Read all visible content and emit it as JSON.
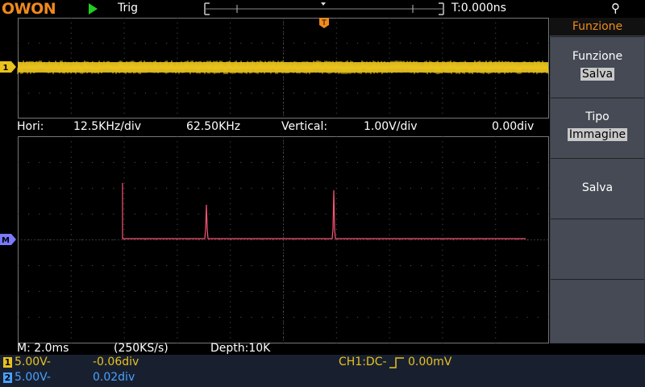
{
  "brand": "OWON",
  "header": {
    "trigger_label": "Trig",
    "time_offset": "T:0.000ns",
    "usb_icon": "usb-icon"
  },
  "fft_info": {
    "hori_label": "Hori:",
    "hori_scale": "12.5KHz/div",
    "hori_center": "62.50KHz",
    "vertical_label": "Vertical:",
    "vertical_scale": "1.00V/div",
    "vertical_offset": "0.00div"
  },
  "channel_markers": {
    "ch1": "1",
    "math": "M",
    "trigger": "T"
  },
  "status": {
    "timebase": "M: 2.0ms",
    "sample_rate": "(250KS/s)",
    "depth": "Depth:10K"
  },
  "channels": [
    {
      "id": "1",
      "volts": "5.00V-",
      "offset": "-0.06div",
      "color": "#e8c21e"
    },
    {
      "id": "2",
      "volts": "5.00V-",
      "offset": "0.02div",
      "color": "#4aa0ff"
    }
  ],
  "trigger_status": {
    "prefix": "CH1:DC-",
    "level": "0.00mV"
  },
  "menu": {
    "title": "Funzione",
    "sections": [
      {
        "label": "Funzione",
        "value": "Salva"
      },
      {
        "label": "Tipo",
        "value": "Immagine"
      },
      {
        "label": "Salva",
        "value": ""
      },
      {
        "label": "",
        "value": ""
      },
      {
        "label": "",
        "value": ""
      }
    ]
  },
  "colors": {
    "ch1": "#e8c21e",
    "ch2": "#4aa0ff",
    "math": "#ff5577",
    "accent": "#f08a1c"
  }
}
